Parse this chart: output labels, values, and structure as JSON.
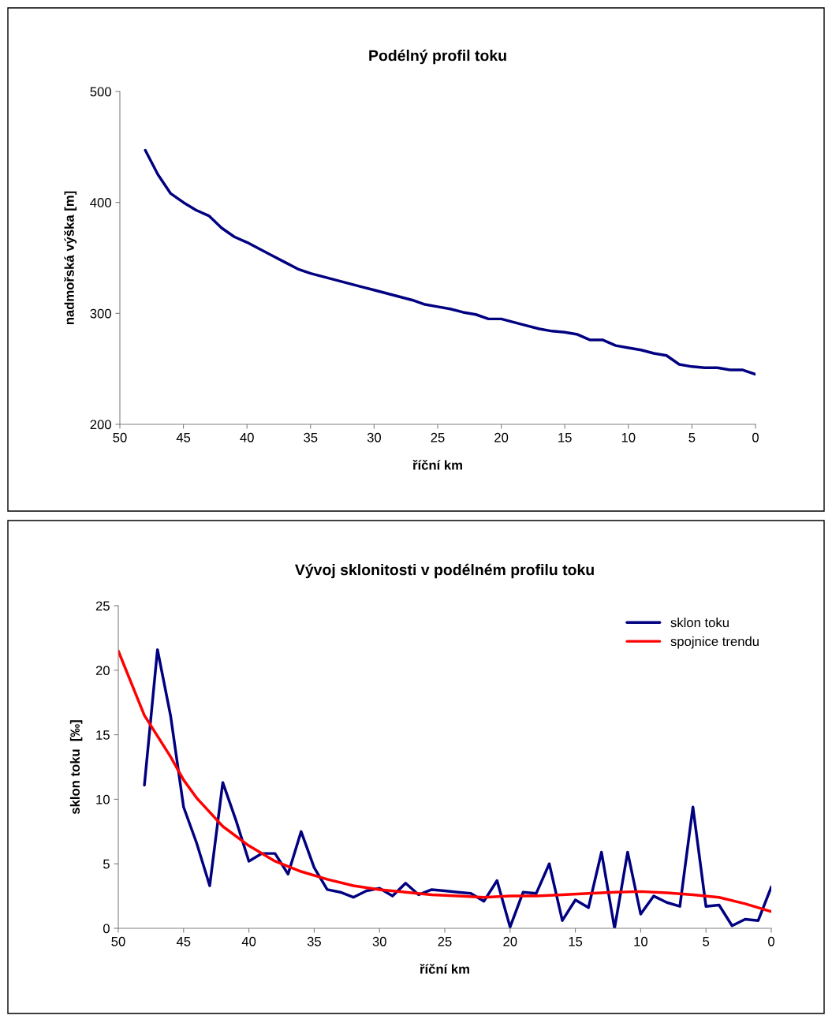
{
  "chart_data": [
    {
      "type": "line",
      "title": "Podélný profil toku",
      "xlabel": "říční km",
      "ylabel": "nadmořská výška [m]",
      "xlim": [
        50,
        0
      ],
      "xticks": [
        50,
        45,
        40,
        35,
        30,
        25,
        20,
        15,
        10,
        5,
        0
      ],
      "ylim": [
        200,
        500
      ],
      "yticks": [
        200,
        300,
        400,
        500
      ],
      "grid": false,
      "legend": false,
      "series": [
        {
          "color": "#000080",
          "x": [
            48,
            47,
            46,
            45,
            44,
            43,
            42,
            41,
            40,
            39,
            38,
            37,
            36,
            35,
            34,
            33,
            32,
            31,
            30,
            29,
            28,
            27,
            26,
            25,
            24,
            23,
            22,
            21,
            20,
            19,
            18,
            17,
            16,
            15,
            14,
            13,
            12,
            11,
            10,
            9,
            8,
            7,
            6,
            5,
            4,
            3,
            2,
            1,
            0
          ],
          "values": [
            447,
            425,
            408,
            400,
            393,
            388,
            377,
            369,
            364,
            358,
            352,
            346,
            340,
            336,
            333,
            330,
            327,
            324,
            321,
            318,
            315,
            312,
            308,
            306,
            304,
            301,
            299,
            295,
            295,
            292,
            289,
            286,
            284,
            283,
            281,
            276,
            276,
            271,
            269,
            267,
            264,
            262,
            254,
            252,
            251,
            251,
            249,
            249,
            245
          ]
        }
      ]
    },
    {
      "type": "line",
      "title": "Vývoj sklonitosti v podélném profilu toku",
      "xlabel": "říční km",
      "ylabel": "sklon toku  [‰]",
      "xlim": [
        50,
        0
      ],
      "xticks": [
        50,
        45,
        40,
        35,
        30,
        25,
        20,
        15,
        10,
        5,
        0
      ],
      "ylim": [
        0,
        25
      ],
      "yticks": [
        0,
        5,
        10,
        15,
        20,
        25
      ],
      "grid": false,
      "legend": "top right",
      "series": [
        {
          "name": "sklon toku",
          "color": "#000080",
          "x": [
            48,
            47,
            46,
            45,
            44,
            43,
            42,
            41,
            40,
            39,
            38,
            37,
            36,
            35,
            34,
            33,
            32,
            31,
            30,
            29,
            28,
            27,
            26,
            25,
            24,
            23,
            22,
            21,
            20,
            19,
            18,
            17,
            16,
            15,
            14,
            13,
            12,
            11,
            10,
            9,
            8,
            7,
            6,
            5,
            4,
            3,
            2,
            1,
            0
          ],
          "values": [
            11.1,
            21.6,
            16.5,
            9.4,
            6.6,
            3.3,
            11.3,
            8.4,
            5.2,
            5.8,
            5.8,
            4.2,
            7.5,
            4.7,
            3.0,
            2.8,
            2.4,
            2.9,
            3.1,
            2.5,
            3.5,
            2.6,
            3.0,
            2.9,
            2.8,
            2.7,
            2.1,
            3.7,
            0.1,
            2.8,
            2.7,
            5.0,
            0.6,
            2.2,
            1.6,
            5.9,
            0,
            5.9,
            1.1,
            2.5,
            2.0,
            1.7,
            9.4,
            1.7,
            1.8,
            0.2,
            0.7,
            0.6,
            3.2
          ]
        },
        {
          "name": "spojnice trendu",
          "color": "#ff0000",
          "x": [
            50,
            48,
            46,
            45,
            44,
            42,
            40,
            38,
            36,
            34,
            32,
            30,
            28,
            26,
            24,
            22,
            20,
            18,
            16,
            14,
            12,
            10,
            8,
            6,
            4,
            2,
            0
          ],
          "values": [
            21.5,
            16.5,
            13.3,
            11.5,
            10.1,
            7.9,
            6.4,
            5.2,
            4.4,
            3.8,
            3.3,
            3.0,
            2.8,
            2.6,
            2.5,
            2.4,
            2.5,
            2.5,
            2.6,
            2.7,
            2.8,
            2.85,
            2.75,
            2.6,
            2.4,
            1.9,
            1.3
          ]
        }
      ]
    }
  ]
}
